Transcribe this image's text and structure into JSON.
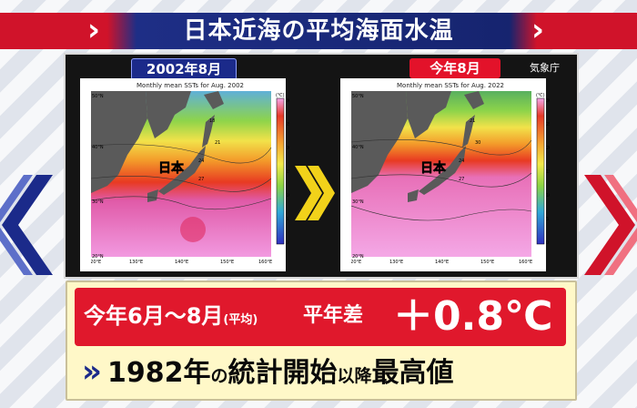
{
  "header": {
    "title": "日本近海の平均海面水温"
  },
  "maps": {
    "left_tag": "2002年8月",
    "right_tag": "今年8月",
    "agency": "気象庁",
    "left_caption": "Monthly mean SSTs for Aug. 2002",
    "right_caption": "Monthly mean SSTs for Aug. 2022",
    "japan_label": "日本",
    "colorbar_unit": "(℃)",
    "colorbar_ticks": [
      "30",
      "25",
      "20",
      "15",
      "10",
      "5",
      "0"
    ],
    "lat_ticks": [
      "50°N",
      "40°N",
      "30°N",
      "20°N"
    ],
    "lon_ticks": [
      "120°E",
      "130°E",
      "140°E",
      "150°E",
      "160°E"
    ],
    "contour_labels_left": [
      "24",
      "27",
      "18",
      "21"
    ],
    "contour_labels_right": [
      "24",
      "27",
      "21",
      "30"
    ]
  },
  "summary": {
    "period": "今年6月～8月",
    "period_note": "(平均)",
    "diff_label": "平年差",
    "diff_value": "＋0.8℃",
    "record_main": "1982年",
    "record_no": "の",
    "record_stats": "統計開始",
    "record_since": "以降",
    "record_high": "最高値"
  },
  "colors": {
    "brand_red": "#e0182c",
    "brand_navy": "#1b2a8a",
    "panel_bg": "#141414",
    "box_bg": "#fff8c8"
  }
}
